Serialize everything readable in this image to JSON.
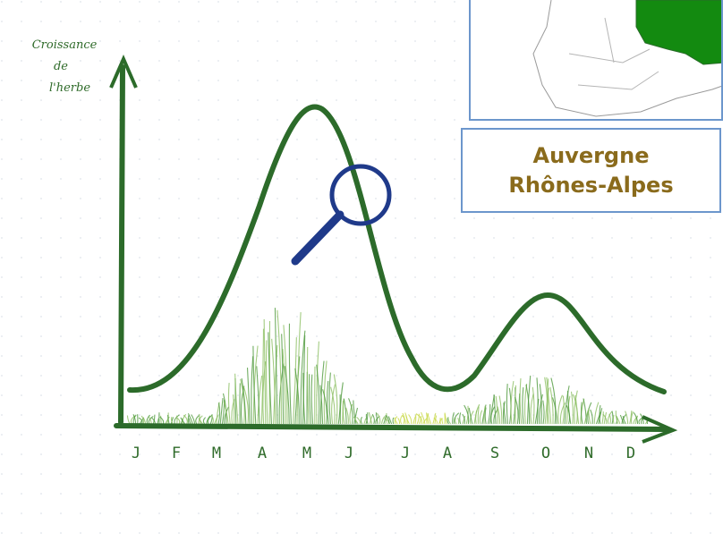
{
  "axis_label": [
    "Croissance",
    "de",
    "l'herbe"
  ],
  "months": [
    "J",
    "F",
    "M",
    "A",
    "M",
    "J",
    "J",
    "A",
    "S",
    "O",
    "N",
    "D"
  ],
  "region": [
    "Auvergne",
    "Rhônes-Alpes"
  ]
}
